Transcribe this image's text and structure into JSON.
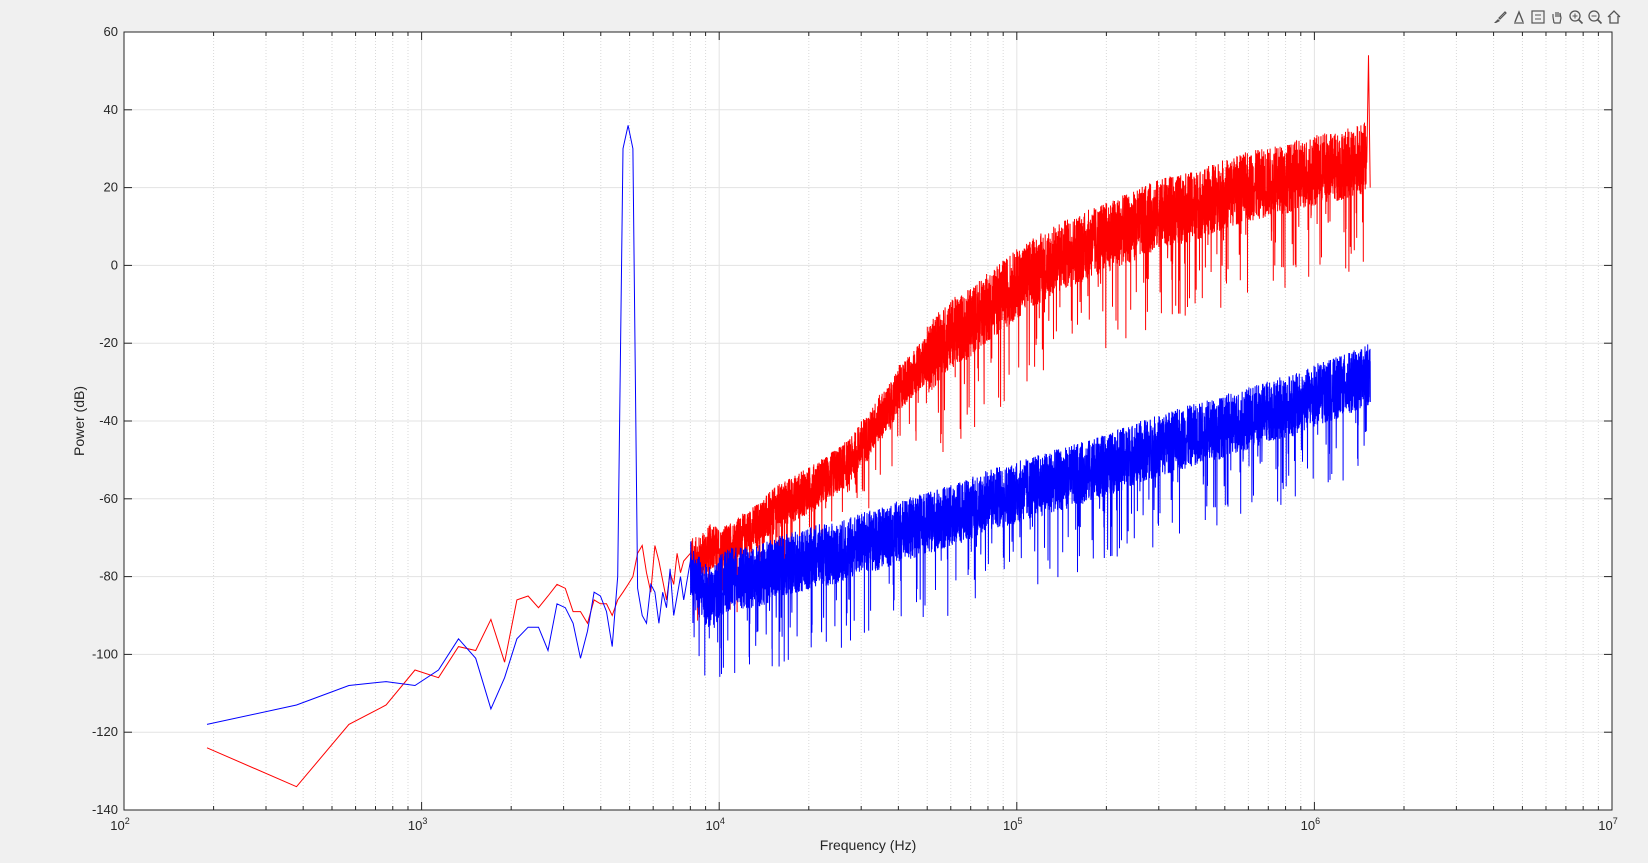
{
  "toolbar": {
    "icons": [
      "brush-icon",
      "data-cursor-icon",
      "legend-icon",
      "pan-icon",
      "zoom-in-icon",
      "zoom-out-icon",
      "home-icon"
    ]
  },
  "chart_data": {
    "type": "line",
    "title": "",
    "xlabel": "Frequency (Hz)",
    "ylabel": "Power (dB)",
    "xscale": "log",
    "xlim": [
      100,
      10000000
    ],
    "ylim": [
      -140,
      60
    ],
    "grid": true,
    "minor_grid_x": true,
    "x_tick_labels": [
      {
        "base": "10",
        "exp": "2",
        "value": 100
      },
      {
        "base": "10",
        "exp": "3",
        "value": 1000
      },
      {
        "base": "10",
        "exp": "4",
        "value": 10000
      },
      {
        "base": "10",
        "exp": "5",
        "value": 100000
      },
      {
        "base": "10",
        "exp": "6",
        "value": 1000000
      },
      {
        "base": "10",
        "exp": "7",
        "value": 10000000
      }
    ],
    "y_ticks": [
      60,
      40,
      20,
      0,
      -20,
      -40,
      -60,
      -80,
      -100,
      -120,
      -140
    ],
    "series": [
      {
        "color": "#ff0000",
        "x": [
          190,
          380,
          570,
          760,
          950,
          1140,
          1330,
          1520,
          1710,
          1900,
          2090,
          2280,
          2470,
          2660,
          2850,
          3040,
          3230,
          3420,
          3610,
          3800,
          3990,
          4180,
          4370,
          4560,
          4750,
          4940,
          5130,
          5320,
          5510,
          5700,
          5890,
          6080,
          6270,
          6460,
          6650,
          6840,
          7030,
          7220,
          7410,
          7600,
          8000,
          8500,
          9000,
          9500,
          10000,
          11000,
          12000,
          13000,
          14000,
          15000,
          16000,
          18000,
          20000,
          22000,
          24000,
          26000,
          28000,
          30000,
          32000,
          34000,
          36000,
          38000,
          40000,
          45000,
          50000,
          55000,
          60000,
          70000,
          80000,
          90000,
          100000,
          120000,
          150000,
          200000,
          250000,
          300000,
          400000,
          500000,
          600000,
          700000,
          800000,
          900000,
          1000000,
          1100000,
          1200000,
          1300000,
          1400000,
          1450000,
          1500000,
          1520000,
          1540000
        ],
        "y": [
          -124,
          -134,
          -118,
          -113,
          -104,
          -106,
          -98,
          -99,
          -91,
          -102,
          -86,
          -85,
          -88,
          -85,
          -82,
          -83,
          -89,
          -89,
          -92,
          -86,
          -87,
          -87,
          -90,
          -86,
          -84,
          -82,
          -80,
          -74,
          -72,
          -79,
          -84,
          -72,
          -76,
          -81,
          -86,
          -79,
          -82,
          -74,
          -79,
          -76,
          -74,
          -74,
          -72,
          -70,
          -72,
          -70,
          -68,
          -66,
          -64,
          -62,
          -60,
          -58,
          -56,
          -54,
          -52,
          -50,
          -48,
          -44,
          -42,
          -38,
          -36,
          -34,
          -30,
          -26,
          -22,
          -18,
          -15,
          -12,
          -8,
          -5,
          -2,
          2,
          6,
          10,
          13,
          16,
          18,
          21,
          23,
          24,
          25,
          26,
          27,
          28,
          28,
          29,
          30,
          30,
          31,
          54,
          20
        ]
      },
      {
        "color": "#0000ff",
        "x": [
          190,
          380,
          570,
          760,
          950,
          1140,
          1330,
          1520,
          1710,
          1900,
          2090,
          2280,
          2470,
          2660,
          2850,
          3040,
          3230,
          3420,
          3610,
          3800,
          3990,
          4180,
          4370,
          4560,
          4750,
          4940,
          5130,
          5320,
          5510,
          5700,
          5890,
          6080,
          6270,
          6460,
          6650,
          6840,
          7030,
          7220,
          7410,
          7600,
          8000,
          8500,
          9000,
          9500,
          10000,
          11000,
          12000,
          13000,
          14000,
          15000,
          16000,
          18000,
          20000,
          22000,
          24000,
          26000,
          28000,
          30000,
          35000,
          40000,
          50000,
          60000,
          70000,
          80000,
          100000,
          120000,
          150000,
          200000,
          250000,
          300000,
          400000,
          500000,
          600000,
          700000,
          800000,
          900000,
          1000000,
          1100000,
          1200000,
          1300000,
          1400000,
          1500000,
          1540000
        ],
        "y": [
          -118,
          -113,
          -108,
          -107,
          -108,
          -104,
          -96,
          -101,
          -114,
          -106,
          -96,
          -93,
          -93,
          -99,
          -87,
          -88,
          -92,
          -101,
          -94,
          -84,
          -85,
          -89,
          -98,
          -80,
          30,
          36,
          30,
          -83,
          -90,
          -92,
          -82,
          -84,
          -92,
          -84,
          -88,
          -78,
          -90,
          -85,
          -80,
          -86,
          -76,
          -80,
          -82,
          -84,
          -80,
          -78,
          -78,
          -78,
          -77,
          -76,
          -75,
          -74,
          -73,
          -72,
          -72,
          -71,
          -70,
          -69,
          -68,
          -66,
          -64,
          -62,
          -60,
          -58,
          -56,
          -54,
          -52,
          -49,
          -46,
          -44,
          -41,
          -39,
          -37,
          -35,
          -34,
          -33,
          -31,
          -30,
          -29,
          -28,
          -27,
          -26,
          -25
        ]
      }
    ]
  }
}
